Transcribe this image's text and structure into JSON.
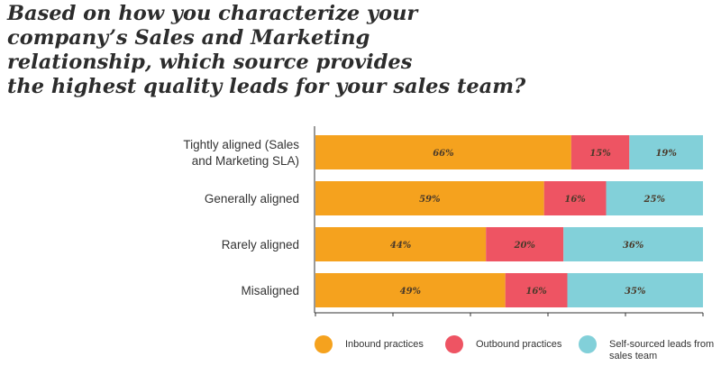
{
  "title_lines": [
    "Based on how you characterize your",
    "company’s Sales and Marketing",
    "relationship, which source provides",
    "the highest quality leads for your sales team?"
  ],
  "chart_data": {
    "type": "bar",
    "orientation": "horizontal",
    "stacked": true,
    "categories": [
      [
        "Tightly aligned (Sales",
        "and Marketing SLA)"
      ],
      [
        "Generally aligned"
      ],
      [
        "Rarely aligned"
      ],
      [
        "Misaligned"
      ]
    ],
    "series": [
      {
        "name": "Inbound practices",
        "color": "#F5A21E",
        "values": [
          66,
          59,
          44,
          49
        ],
        "labels": [
          "66%",
          "59%",
          "44%",
          "49%"
        ]
      },
      {
        "name": "Outbound practices",
        "color": "#EE5463",
        "values": [
          15,
          16,
          20,
          16
        ],
        "labels": [
          "15%",
          "16%",
          "20%",
          "16%"
        ]
      },
      {
        "name": "Self-sourced leads from sales team",
        "legend_lines": [
          "Self-sourced leads from",
          "sales team"
        ],
        "color": "#82D0D9",
        "values": [
          19,
          25,
          36,
          35
        ],
        "labels": [
          "19%",
          "25%",
          "36%",
          "35%"
        ]
      }
    ],
    "xlim": [
      0,
      100
    ],
    "legend_position": "bottom"
  }
}
